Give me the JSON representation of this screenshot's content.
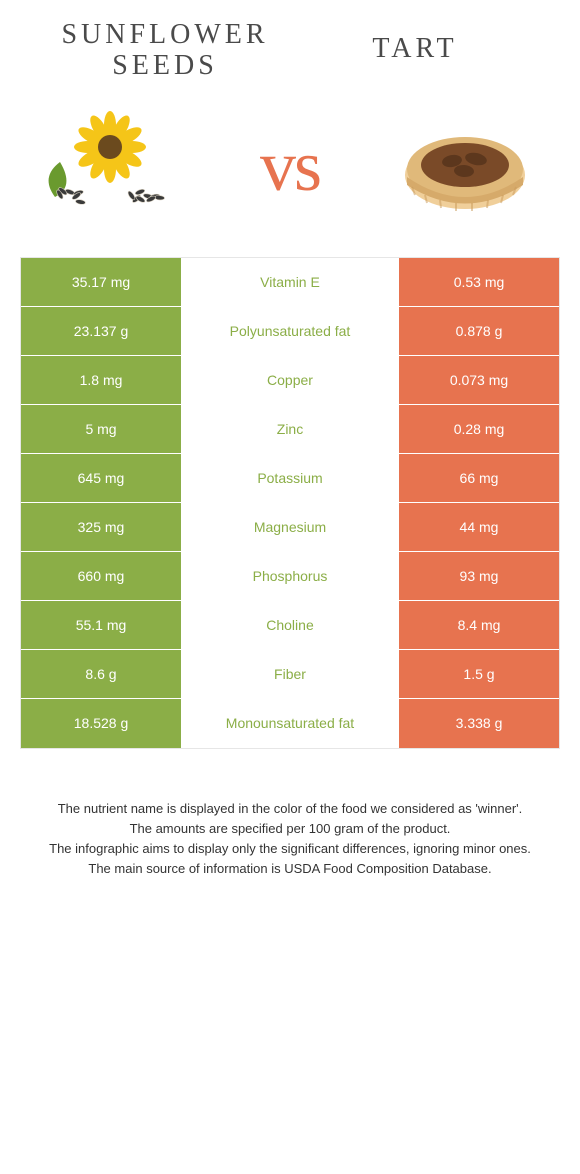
{
  "header": {
    "left": "SUNFLOWER\nSEEDS",
    "right": "TART"
  },
  "hero": {
    "vs": "vs"
  },
  "colors": {
    "left_bg": "#8bae47",
    "right_bg": "#e7734f",
    "nutrient_left_text": "#8bae47",
    "nutrient_right_text": "#e7734f"
  },
  "rows": [
    {
      "left": "35.17 mg",
      "nutrient": "Vitamin E",
      "right": "0.53 mg",
      "winner": "left"
    },
    {
      "left": "23.137 g",
      "nutrient": "Polyunsaturated fat",
      "right": "0.878 g",
      "winner": "left"
    },
    {
      "left": "1.8 mg",
      "nutrient": "Copper",
      "right": "0.073 mg",
      "winner": "left"
    },
    {
      "left": "5 mg",
      "nutrient": "Zinc",
      "right": "0.28 mg",
      "winner": "left"
    },
    {
      "left": "645 mg",
      "nutrient": "Potassium",
      "right": "66 mg",
      "winner": "left"
    },
    {
      "left": "325 mg",
      "nutrient": "Magnesium",
      "right": "44 mg",
      "winner": "left"
    },
    {
      "left": "660 mg",
      "nutrient": "Phosphorus",
      "right": "93 mg",
      "winner": "left"
    },
    {
      "left": "55.1 mg",
      "nutrient": "Choline",
      "right": "8.4 mg",
      "winner": "left"
    },
    {
      "left": "8.6 g",
      "nutrient": "Fiber",
      "right": "1.5 g",
      "winner": "left"
    },
    {
      "left": "18.528 g",
      "nutrient": "Monounsaturated fat",
      "right": "3.338 g",
      "winner": "left"
    }
  ],
  "footer": {
    "line1": "The nutrient name is displayed in the color of the food we considered as 'winner'.",
    "line2": "The amounts are specified per 100 gram of the product.",
    "line3": "The infographic aims to display only the significant differences, ignoring minor ones.",
    "line4": "The main source of information is USDA Food Composition Database."
  }
}
